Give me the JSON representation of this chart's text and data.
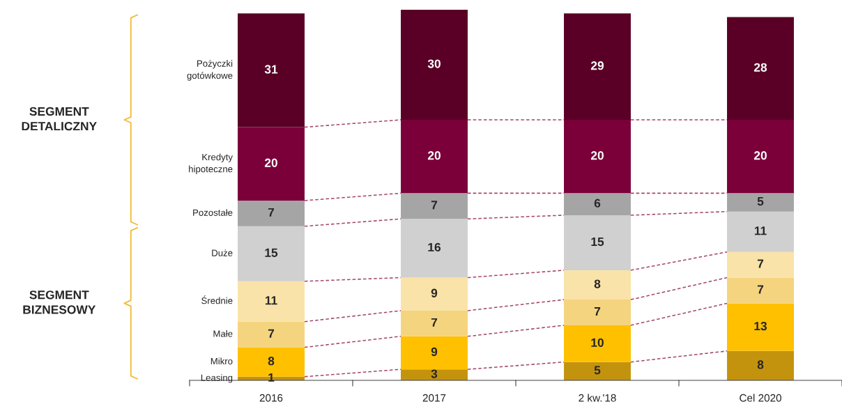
{
  "chart_data": {
    "type": "bar",
    "stacked": true,
    "data_labels": true,
    "categories": [
      "2016",
      "2017",
      "2 kw.'18",
      "Cel 2020"
    ],
    "series": [
      {
        "name": "Leasing",
        "color": "#c4930e",
        "values": [
          1,
          3,
          5,
          8
        ]
      },
      {
        "name": "Mikro",
        "color": "#ffc000",
        "values": [
          8,
          9,
          10,
          13
        ]
      },
      {
        "name": "Małe",
        "color": "#f5d47f",
        "values": [
          7,
          7,
          7,
          7
        ]
      },
      {
        "name": "Średnie",
        "color": "#fae3a8",
        "values": [
          11,
          9,
          8,
          7
        ]
      },
      {
        "name": "Duże",
        "color": "#d0d0d0",
        "values": [
          15,
          16,
          15,
          11
        ]
      },
      {
        "name": "Pozostałe",
        "color": "#a5a5a5",
        "values": [
          7,
          7,
          6,
          5
        ]
      },
      {
        "name": "Kredyty\nhipoteczne",
        "color": "#7b003a",
        "values": [
          20,
          20,
          20,
          20
        ]
      },
      {
        "name": "Pożyczki\ngotówkowe",
        "color": "#5a0026",
        "values": [
          31,
          30,
          29,
          28
        ]
      }
    ],
    "annotations": [
      "SEGMENT\nDETALICZNY",
      "SEGMENT\nBIZNESOWY"
    ]
  }
}
